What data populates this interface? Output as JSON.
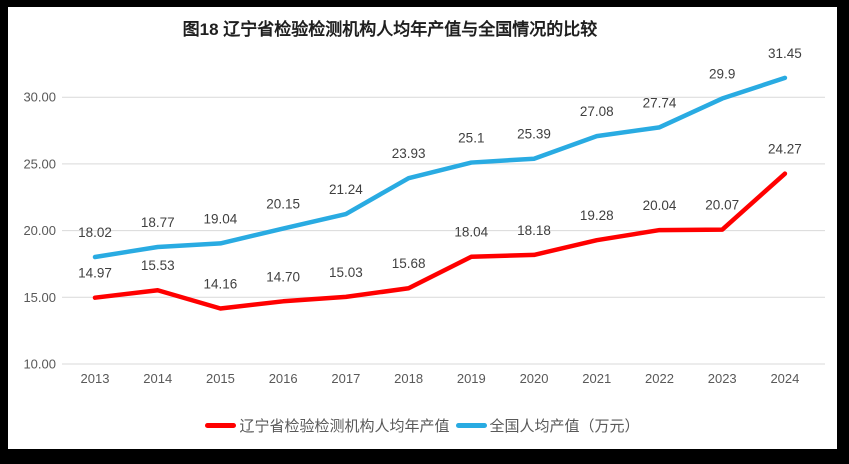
{
  "title": "图18 辽宁省检验检测机构人均年产值与全国情况的比较",
  "colors": {
    "frame": "#000000",
    "background": "#ffffff",
    "grid": "#d9d9d9",
    "axis_text": "#595959",
    "data_label_text": "#404040",
    "title_text": "#1f1f1f",
    "liaoning_red": "#ff0000",
    "national_blue": "#29abe2"
  },
  "legend": {
    "items": [
      {
        "label": "辽宁省检验检测机构人均年产值",
        "color": "#ff0000"
      },
      {
        "label": "全国人均产值（万元）",
        "color": "#29abe2"
      }
    ]
  },
  "chart_data": {
    "type": "line",
    "title": "图18 辽宁省检验检测机构人均年产值与全国情况的比较",
    "categories": [
      "2013",
      "2014",
      "2015",
      "2016",
      "2017",
      "2018",
      "2019",
      "2020",
      "2021",
      "2022",
      "2023",
      "2024"
    ],
    "series": [
      {
        "name": "辽宁省检验检测机构人均年产值",
        "color": "#ff0000",
        "values": [
          14.97,
          15.53,
          14.16,
          14.7,
          15.03,
          15.68,
          18.04,
          18.18,
          19.28,
          20.04,
          20.07,
          24.27
        ],
        "labels": [
          "14.97",
          "15.53",
          "14.16",
          "14.70",
          "15.03",
          "15.68",
          "18.04",
          "18.18",
          "19.28",
          "20.04",
          "20.07",
          "24.27"
        ]
      },
      {
        "name": "全国人均产值（万元）",
        "color": "#29abe2",
        "values": [
          18.02,
          18.77,
          19.04,
          20.15,
          21.24,
          23.93,
          25.1,
          25.39,
          27.08,
          27.74,
          29.9,
          31.45
        ],
        "labels": [
          "18.02",
          "18.77",
          "19.04",
          "20.15",
          "21.24",
          "23.93",
          "25.1",
          "25.39",
          "27.08",
          "27.74",
          "29.9",
          "31.45"
        ]
      }
    ],
    "yticks": [
      10,
      15,
      20,
      25,
      30
    ],
    "ytick_labels": [
      "10.00",
      "15.00",
      "20.00",
      "25.00",
      "30.00"
    ],
    "ylim": [
      10,
      32.5
    ],
    "xlabel": "",
    "ylabel": "",
    "grid": true,
    "legend_position": "bottom"
  }
}
